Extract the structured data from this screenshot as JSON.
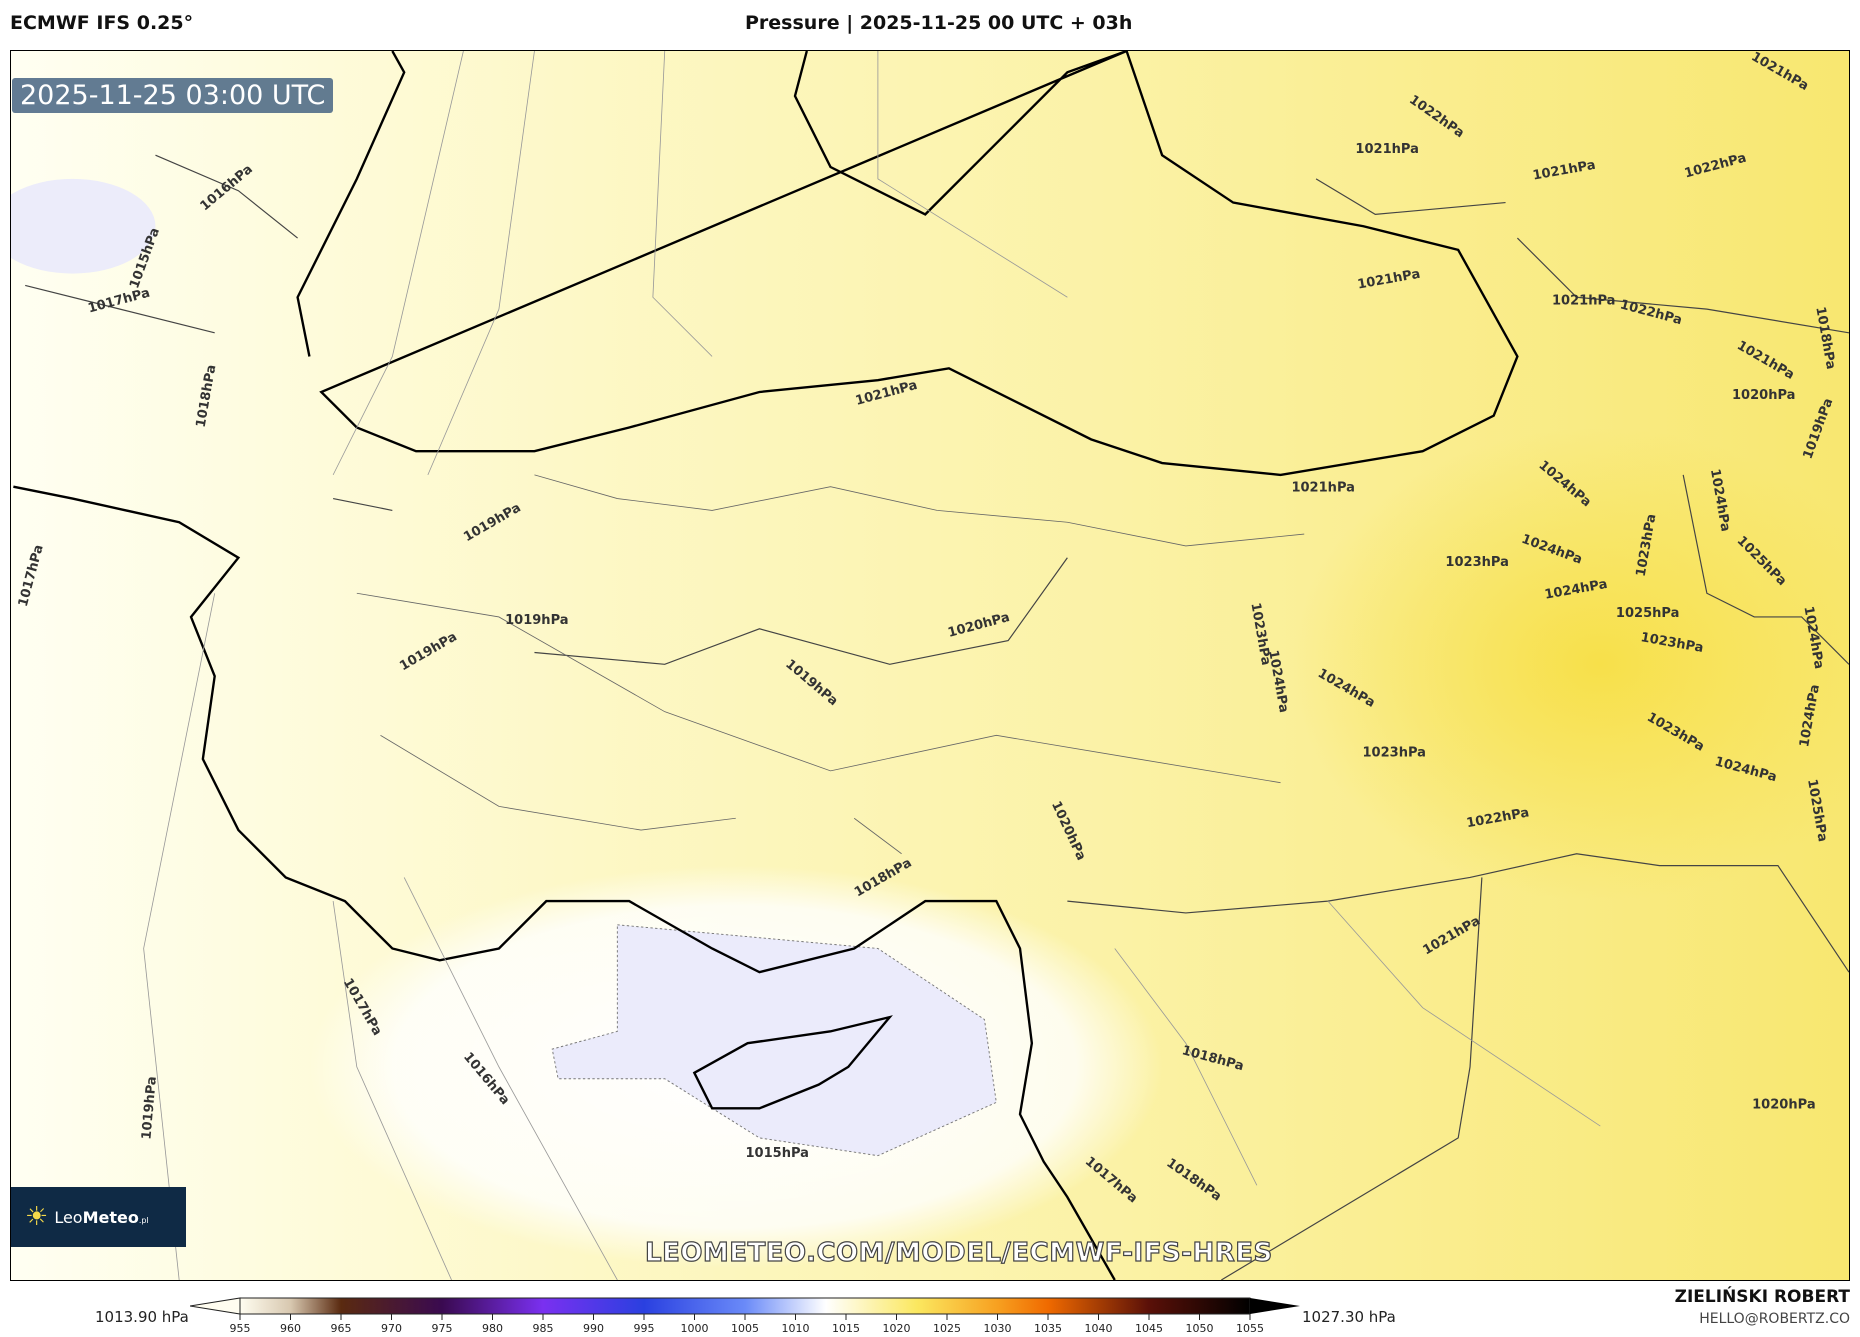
{
  "header": {
    "model": "ECMWF IFS 0.25°",
    "title": "Pressure | 2025-11-25 00 UTC + 03h"
  },
  "map": {
    "valid_time": "2025-11-25 03:00 UTC",
    "watermark": "LEOMETEO.COM/MODEL/ECMWF-IFS-HRES",
    "logo": {
      "text_light": "Leo",
      "text_bold": "Meteo",
      "suffix": ".pl"
    },
    "contour_labels": [
      "1021hPa",
      "1022hPa",
      "1021hPa",
      "1021hPa",
      "1022hPa",
      "1016hPa",
      "1015hPa",
      "1017hPa",
      "1021hPa",
      "1021hPa",
      "1022hPa",
      "1018hPa",
      "1021hPa",
      "1020hPa",
      "1019hPa",
      "1018hPa",
      "1021hPa",
      "1021hPa",
      "1024hPa",
      "1024hPa",
      "1019hPa",
      "1017hPa",
      "1023hPa",
      "1024hPa",
      "1023hPa",
      "1025hPa",
      "1024hPa",
      "1025hPa",
      "1019hPa",
      "1020hPa",
      "1019hPa",
      "1023hPa",
      "1024hPa",
      "1024hPa",
      "1019hPa",
      "1023hPa",
      "1024hPa",
      "1024hPa",
      "1023hPa",
      "1024hPa",
      "1025hPa",
      "1023hPa",
      "1020hPa",
      "1022hPa",
      "1018hPa",
      "1021hPa",
      "1017hPa",
      "1016hPa",
      "1018hPa",
      "1019hPa",
      "1020hPa",
      "1015hPa",
      "1017hPa",
      "1018hPa"
    ],
    "colors": {
      "low": "#ebebfb",
      "neutral": "#fffff0",
      "high": "#f7e55a",
      "coast": "#000000",
      "borders": "#444444"
    }
  },
  "colorbar": {
    "min_label": "1013.90 hPa",
    "max_label": "1027.30 hPa",
    "ticks": [
      "955",
      "960",
      "965",
      "970",
      "975",
      "980",
      "985",
      "990",
      "995",
      "1000",
      "1005",
      "1010",
      "1015",
      "1020",
      "1025",
      "1030",
      "1035",
      "1040",
      "1045",
      "1050",
      "1055"
    ],
    "units": "hPa"
  },
  "footer": {
    "author": "ZIELIŃSKI ROBERT",
    "email": "HELLO@ROBERTZ.CO"
  }
}
